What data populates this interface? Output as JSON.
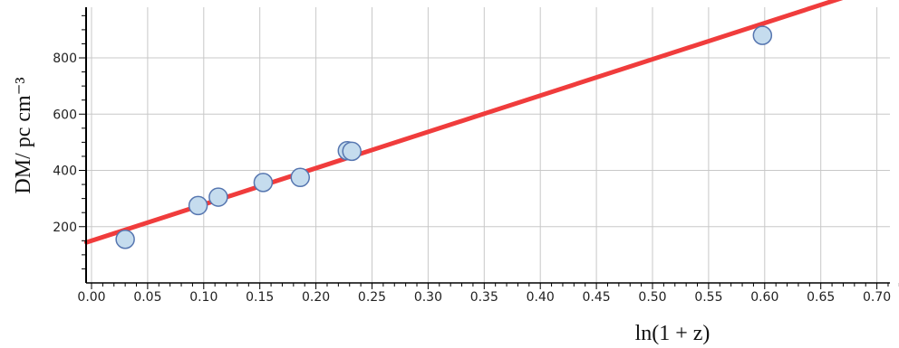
{
  "chart_data": {
    "type": "scatter",
    "title": "",
    "xlabel": "ln(1 + z)",
    "ylabel": "DM/ pc cm⁻³",
    "xlim": [
      0.0,
      0.725
    ],
    "ylim": [
      0,
      980
    ],
    "grid": true,
    "x_ticks": [
      "0.00",
      "0.05",
      "0.10",
      "0.15",
      "0.20",
      "0.25",
      "0.30",
      "0.35",
      "0.40",
      "0.45",
      "0.50",
      "0.55",
      "0.60",
      "0.65",
      "0.70"
    ],
    "y_ticks": [
      "200",
      "400",
      "600",
      "800"
    ],
    "points": [
      {
        "x": 0.03,
        "y": 155
      },
      {
        "x": 0.095,
        "y": 275
      },
      {
        "x": 0.113,
        "y": 305
      },
      {
        "x": 0.153,
        "y": 357
      },
      {
        "x": 0.186,
        "y": 375
      },
      {
        "x": 0.228,
        "y": 470
      },
      {
        "x": 0.232,
        "y": 468
      },
      {
        "x": 0.598,
        "y": 880
      }
    ],
    "fit_line": {
      "slope": 1290,
      "intercept": 150
    },
    "colors": {
      "points_fill": "#c5dcee",
      "points_stroke": "#5676b0",
      "fit_line": "#f03c3c",
      "grid": "#c8c8c8"
    }
  }
}
